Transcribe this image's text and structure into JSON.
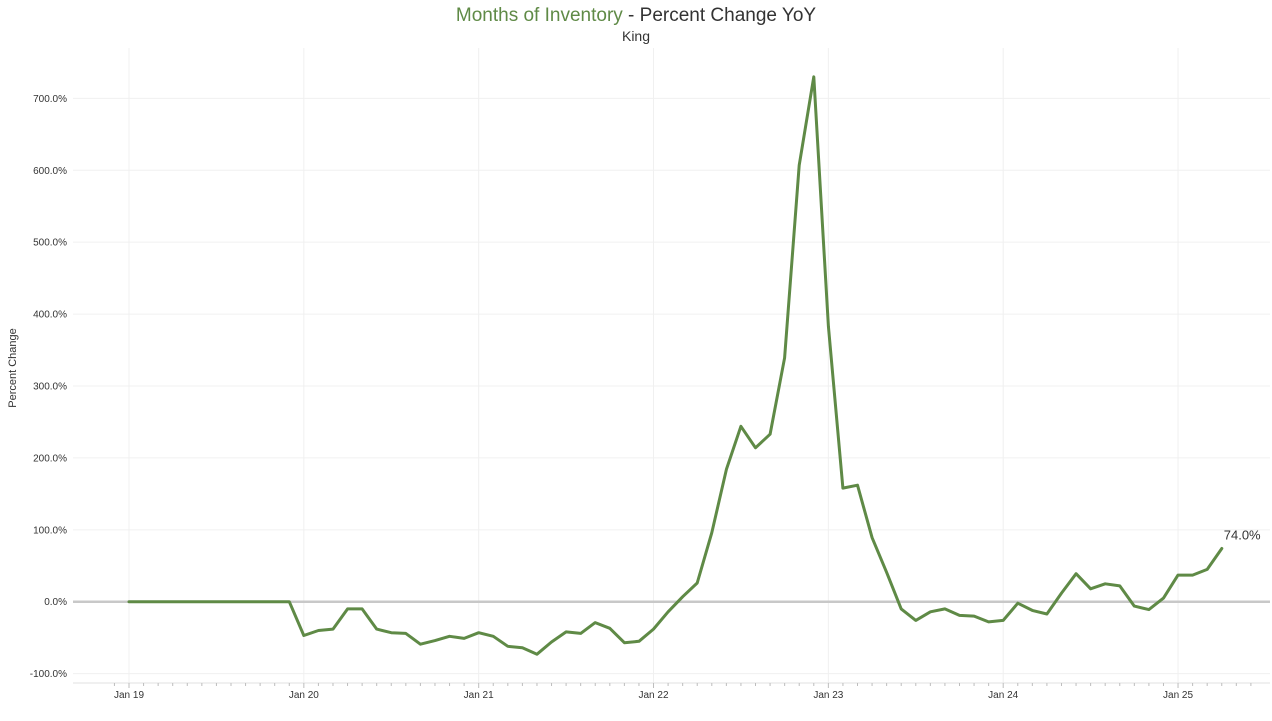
{
  "chart_data": {
    "type": "line",
    "title_highlight": "Months of Inventory",
    "title_rest": " - Percent Change YoY",
    "subtitle": "King",
    "ylabel": "Percent Change",
    "xlabel": "",
    "line_color": "#5f8a46",
    "highlight_color": "#5f8a46",
    "zero_line_color": "#c8c8c8",
    "grid": true,
    "legend": "none",
    "x_start": "2018-12",
    "x_end": "2025-06",
    "x_tick_labels": [
      "Jan 19",
      "Jan 20",
      "Jan 21",
      "Jan 22",
      "Jan 23",
      "Jan 24",
      "Jan 25"
    ],
    "y_ticks": [
      -100,
      0,
      100,
      200,
      300,
      400,
      500,
      600,
      700
    ],
    "y_tick_labels": [
      "-100.0%",
      "0.0%",
      "100.0%",
      "200.0%",
      "300.0%",
      "400.0%",
      "500.0%",
      "600.0%",
      "700.0%"
    ],
    "ylim": [
      -113,
      770
    ],
    "end_label": "74.0%",
    "series": [
      {
        "x": [
          "2019-01",
          "2019-02",
          "2019-03",
          "2019-04",
          "2019-05",
          "2019-06",
          "2019-07",
          "2019-08",
          "2019-09",
          "2019-10",
          "2019-11",
          "2019-12",
          "2020-01",
          "2020-02",
          "2020-03",
          "2020-04",
          "2020-05",
          "2020-06",
          "2020-07",
          "2020-08",
          "2020-09",
          "2020-10",
          "2020-11",
          "2020-12",
          "2021-01",
          "2021-02",
          "2021-03",
          "2021-04",
          "2021-05",
          "2021-06",
          "2021-07",
          "2021-08",
          "2021-09",
          "2021-10",
          "2021-11",
          "2021-12",
          "2022-01",
          "2022-02",
          "2022-03",
          "2022-04",
          "2022-05",
          "2022-06",
          "2022-07",
          "2022-08",
          "2022-09",
          "2022-10",
          "2022-11",
          "2022-12",
          "2023-01",
          "2023-02",
          "2023-03",
          "2023-04",
          "2023-05",
          "2023-06",
          "2023-07",
          "2023-08",
          "2023-09",
          "2023-10",
          "2023-11",
          "2023-12",
          "2024-01",
          "2024-02",
          "2024-03",
          "2024-04",
          "2024-05",
          "2024-06",
          "2024-07",
          "2024-08",
          "2024-09",
          "2024-10",
          "2024-11",
          "2024-12",
          "2025-01",
          "2025-02",
          "2025-03",
          "2025-04"
        ],
        "values": [
          0,
          0,
          0,
          0,
          0,
          0,
          0,
          0,
          0,
          0,
          0,
          0,
          -47,
          -40,
          -38,
          -10,
          -10,
          -38,
          -43,
          -44,
          -59,
          -54,
          -48,
          -51,
          -43,
          -48,
          -62,
          -64,
          -73,
          -56,
          -42,
          -44,
          -29,
          -37,
          -57,
          -55,
          -38,
          -14,
          7,
          26,
          96,
          184,
          244,
          214,
          233,
          339,
          607,
          730,
          383,
          158,
          162,
          89,
          41,
          -10,
          -26,
          -14,
          -10,
          -19,
          -20,
          -28,
          -26,
          -2,
          -12,
          -17,
          12,
          39,
          18,
          25,
          22,
          -6,
          -11,
          5,
          37,
          37,
          45,
          74
        ]
      }
    ]
  }
}
